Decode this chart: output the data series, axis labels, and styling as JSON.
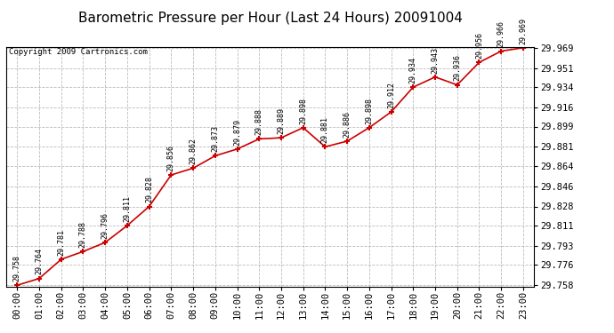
{
  "title": "Barometric Pressure per Hour (Last 24 Hours) 20091004",
  "copyright": "Copyright 2009 Cartronics.com",
  "hours": [
    "00:00",
    "01:00",
    "02:00",
    "03:00",
    "04:00",
    "05:00",
    "06:00",
    "07:00",
    "08:00",
    "09:00",
    "10:00",
    "11:00",
    "12:00",
    "13:00",
    "14:00",
    "15:00",
    "16:00",
    "17:00",
    "18:00",
    "19:00",
    "20:00",
    "21:00",
    "22:00",
    "23:00"
  ],
  "values": [
    29.758,
    29.764,
    29.781,
    29.788,
    29.796,
    29.811,
    29.828,
    29.856,
    29.862,
    29.873,
    29.879,
    29.888,
    29.889,
    29.898,
    29.881,
    29.886,
    29.898,
    29.912,
    29.934,
    29.943,
    29.936,
    29.956,
    29.966,
    29.969
  ],
  "yticks": [
    29.758,
    29.776,
    29.793,
    29.811,
    29.828,
    29.846,
    29.864,
    29.881,
    29.899,
    29.916,
    29.934,
    29.951,
    29.969
  ],
  "line_color": "#cc0000",
  "marker_color": "#cc0000",
  "bg_color": "#ffffff",
  "grid_color": "#bbbbbb",
  "title_fontsize": 11,
  "annotation_fontsize": 6.0,
  "tick_fontsize": 7.5,
  "copyright_fontsize": 6.5
}
